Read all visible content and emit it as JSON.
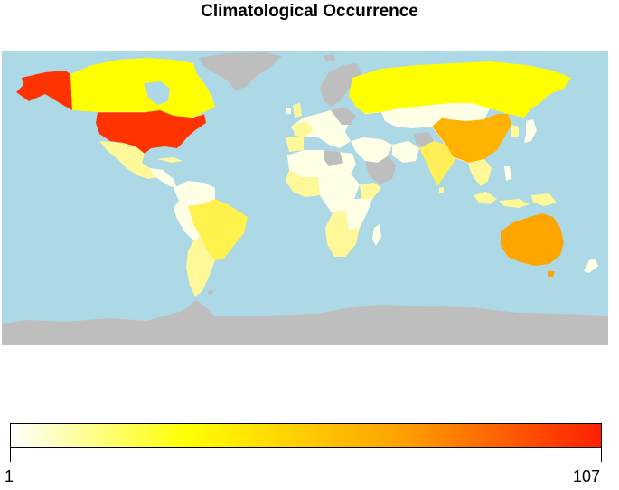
{
  "title": "Climatological Occurrence",
  "legend": {
    "min_label": "1",
    "max_label": "107",
    "colors": [
      "#FFFFFF",
      "#FFFF00",
      "#FFA500",
      "#FF2000"
    ]
  },
  "map": {
    "ocean_color": "#ADD8E6",
    "no_data_color": "#BEBEBE",
    "country_colors": {
      "usa": "#FF3300",
      "alaska": "#FF3300",
      "canada": "#FFFF00",
      "russia": "#FFFF00",
      "china": "#FFB300",
      "australia": "#FFA500",
      "brazil": "#FFF24D",
      "india": "#FFEE55",
      "low": "#FFFFE6",
      "mid": "#FFF899"
    }
  }
}
